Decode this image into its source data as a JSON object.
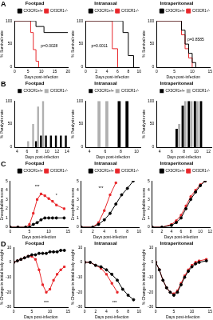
{
  "chart_data": [
    {
      "type": "line",
      "panel_label": "A",
      "title": "Footpad",
      "x_label": "Days post-infection",
      "y_label": "% Survival rate",
      "xlim": [
        0,
        20
      ],
      "xticks": [
        0,
        5,
        10,
        15,
        20
      ],
      "ylim": [
        0,
        100
      ],
      "yticks": [
        0,
        50,
        100
      ],
      "grid": false,
      "legend": "top right",
      "series": [
        {
          "name": "CX3CR1+/+",
          "color": "#000000",
          "line_style": "step",
          "marker": "none",
          "x": [
            0,
            8,
            11,
            20
          ],
          "values": [
            100,
            88,
            75,
            75
          ]
        },
        {
          "name": "CX3CR1-/-",
          "color": "#e8262a",
          "line_style": "step",
          "marker": "none",
          "x": [
            0,
            6,
            7,
            8,
            9
          ],
          "values": [
            100,
            75,
            38,
            13,
            0
          ]
        }
      ],
      "annotations": [
        {
          "x": 13,
          "y": 45,
          "text": "p=0.0028"
        }
      ]
    },
    {
      "type": "line",
      "title": "Intranasal",
      "x_label": "Days post-infection",
      "y_label": "% Survival rate",
      "xlim": [
        0,
        10
      ],
      "xticks": [
        0,
        2,
        4,
        6,
        8,
        10
      ],
      "ylim": [
        0,
        100
      ],
      "yticks": [
        0,
        50,
        100
      ],
      "grid": false,
      "legend": "top right",
      "series": [
        {
          "name": "CX3CR1+/+",
          "color": "#000000",
          "line_style": "step",
          "marker": "none",
          "x": [
            0,
            7,
            8,
            9
          ],
          "values": [
            100,
            75,
            25,
            0
          ]
        },
        {
          "name": "CX3CR1-/-",
          "color": "#e8262a",
          "line_style": "step",
          "marker": "none",
          "x": [
            0,
            5,
            6
          ],
          "values": [
            100,
            40,
            0
          ]
        }
      ],
      "annotations": [
        {
          "x": 2.6,
          "y": 45,
          "text": "p=0.0011"
        }
      ]
    },
    {
      "type": "line",
      "title": "Intraperitoneal",
      "x_label": "Days post-infection",
      "y_label": "% Survival rate",
      "xlim": [
        0,
        15
      ],
      "xticks": [
        0,
        5,
        10,
        15
      ],
      "ylim": [
        0,
        100
      ],
      "yticks": [
        0,
        50,
        100
      ],
      "grid": false,
      "legend": "top right",
      "series": [
        {
          "name": "CX3CR1+/+",
          "color": "#000000",
          "line_style": "step",
          "marker": "none",
          "x": [
            0,
            7,
            8,
            9,
            10,
            11
          ],
          "values": [
            100,
            80,
            50,
            30,
            10,
            0
          ]
        },
        {
          "name": "CX3CR1-/-",
          "color": "#e8262a",
          "line_style": "step",
          "marker": "none",
          "x": [
            0,
            7,
            8,
            9,
            10
          ],
          "values": [
            100,
            70,
            40,
            20,
            0
          ]
        }
      ],
      "annotations": [
        {
          "x": 11,
          "y": 60,
          "text": "p=0.8585"
        }
      ]
    },
    {
      "type": "bar",
      "panel_label": "B",
      "title": "Footpad",
      "x_label": "Days post-infection",
      "y_label": "% Paralysis rate",
      "categories": [
        "4",
        null,
        "6",
        null,
        "8",
        null,
        "10",
        null,
        "12",
        null,
        "14"
      ],
      "ylim": [
        0,
        100
      ],
      "yticks": [
        0,
        50,
        100
      ],
      "grid": false,
      "legend": "top right",
      "series": [
        {
          "name": "CX3CR1+/+",
          "color": "#000000",
          "values": [
            0,
            0,
            0,
            0,
            13,
            25,
            25,
            25,
            25,
            25,
            25
          ]
        },
        {
          "name": "CX3CR1-/-",
          "color": "#b0b0b0",
          "values": [
            0,
            0,
            13,
            50,
            88,
            100,
            0,
            0,
            0,
            0,
            0
          ]
        }
      ]
    },
    {
      "type": "bar",
      "title": "Intranasal",
      "x_label": "Days post-infection",
      "y_label": "% Paralysis rate",
      "categories": [
        "4",
        null,
        "6",
        null,
        "8",
        null,
        "10"
      ],
      "ylim": [
        0,
        100
      ],
      "yticks": [
        0,
        50,
        100
      ],
      "grid": false,
      "legend": "top right",
      "series": [
        {
          "name": "CX3CR1+/+",
          "color": "#000000",
          "values": [
            0,
            0,
            0,
            0,
            100,
            100,
            0
          ]
        },
        {
          "name": "CX3CR1-/-",
          "color": "#b0b0b0",
          "values": [
            0,
            100,
            100,
            0,
            0,
            0,
            0
          ]
        }
      ]
    },
    {
      "type": "bar",
      "title": "Intraperitoneal",
      "x_label": "Days post-infection",
      "y_label": "% Paralysis rate",
      "categories": [
        "4",
        null,
        "6",
        null,
        "8",
        null,
        "10",
        null,
        "12"
      ],
      "ylim": [
        0,
        100
      ],
      "yticks": [
        0,
        50,
        100
      ],
      "grid": false,
      "legend": "top right",
      "series": [
        {
          "name": "CX3CR1+/+",
          "color": "#000000",
          "values": [
            0,
            0,
            0,
            40,
            90,
            100,
            100,
            100,
            0
          ]
        },
        {
          "name": "CX3CR1-/-",
          "color": "#b0b0b0",
          "values": [
            0,
            0,
            0,
            50,
            100,
            100,
            100,
            0,
            0
          ]
        }
      ]
    },
    {
      "type": "line",
      "panel_label": "C",
      "title": "Footpad",
      "x_label": "Days post-infection",
      "y_label": "Encephalitis score",
      "xlim": [
        0,
        15
      ],
      "xticks": [
        0,
        5,
        10,
        15
      ],
      "ylim": [
        0,
        5
      ],
      "yticks": [
        0,
        1,
        2,
        3,
        4,
        5
      ],
      "grid": false,
      "legend": "top right",
      "series": [
        {
          "name": "CX3CR1+/+",
          "color": "#000000",
          "line_style": "solid",
          "marker": "circle",
          "x": [
            0,
            2,
            4,
            5,
            6,
            7,
            8,
            9,
            10,
            11,
            12,
            14
          ],
          "values": [
            0,
            0,
            0,
            0,
            0.3,
            0.5,
            0.8,
            1,
            1,
            1,
            1,
            1
          ]
        },
        {
          "name": "CX3CR1-/-",
          "color": "#e8262a",
          "line_style": "solid",
          "marker": "square",
          "x": [
            0,
            2,
            4,
            5,
            6,
            7,
            8,
            9,
            10,
            11,
            12,
            14
          ],
          "values": [
            0,
            0,
            0,
            0.3,
            1.5,
            3,
            3.6,
            3.4,
            3.1,
            2.8,
            2.4,
            2
          ]
        }
      ],
      "annotations": [
        {
          "x": 7,
          "y": 4.4,
          "text": "***"
        },
        {
          "x": 12,
          "y": 3.4,
          "text": "*"
        }
      ]
    },
    {
      "type": "line",
      "title": "Intranasal",
      "x_label": "Days post-infection",
      "y_label": "Encephalitis score",
      "xlim": [
        0,
        10
      ],
      "xticks": [
        0,
        2,
        4,
        6,
        8,
        10
      ],
      "ylim": [
        0,
        5
      ],
      "yticks": [
        0,
        1,
        2,
        3,
        4,
        5
      ],
      "grid": false,
      "legend": "top right",
      "series": [
        {
          "name": "CX3CR1+/+",
          "color": "#000000",
          "line_style": "solid",
          "marker": "circle",
          "x": [
            0,
            2,
            3,
            4,
            5,
            6,
            7,
            8,
            9
          ],
          "values": [
            0,
            0,
            0.3,
            0.8,
            1.5,
            2.5,
            3.5,
            4.2,
            5
          ]
        },
        {
          "name": "CX3CR1-/-",
          "color": "#e8262a",
          "line_style": "solid",
          "marker": "square",
          "x": [
            0,
            2,
            3,
            4,
            5,
            6,
            7,
            8,
            9
          ],
          "values": [
            0,
            0,
            0.5,
            1.8,
            3.5,
            4.8,
            null,
            null,
            null
          ]
        }
      ],
      "annotations": [
        {
          "x": 3.4,
          "y": 4.2,
          "text": "***"
        }
      ]
    },
    {
      "type": "line",
      "title": "Intraperitoneal",
      "x_label": "Days post-infection",
      "y_label": "Encephalitis score",
      "xlim": [
        0,
        12
      ],
      "xticks": [
        0,
        2,
        4,
        6,
        8,
        10,
        12
      ],
      "ylim": [
        0,
        5
      ],
      "yticks": [
        0,
        1,
        2,
        3,
        4,
        5
      ],
      "grid": false,
      "legend": "top right",
      "series": [
        {
          "name": "CX3CR1+/+",
          "color": "#000000",
          "line_style": "solid",
          "marker": "circle",
          "x": [
            0,
            2,
            4,
            5,
            6,
            7,
            8,
            9,
            10,
            11
          ],
          "values": [
            0,
            0,
            0.2,
            0.5,
            1,
            2,
            3,
            3.8,
            4.5,
            5
          ]
        },
        {
          "name": "CX3CR1-/-",
          "color": "#e8262a",
          "line_style": "solid",
          "marker": "square",
          "x": [
            0,
            2,
            4,
            5,
            6,
            7,
            8,
            9,
            10,
            11
          ],
          "values": [
            0,
            0,
            0.3,
            0.7,
            1.3,
            2.3,
            3.3,
            4,
            4.6,
            5
          ]
        }
      ]
    },
    {
      "type": "line",
      "panel_label": "D",
      "title": "Footpad",
      "x_label": "Days post-infection",
      "y_label": "% Change in initial body weight",
      "xlim": [
        0,
        15
      ],
      "xticks": [
        0,
        5,
        10,
        15
      ],
      "ylim": [
        -30,
        10
      ],
      "yticks": [
        -30,
        -20,
        -10,
        0,
        10
      ],
      "grid": false,
      "series": [
        {
          "name": "CX3CR1+/+",
          "color": "#000000",
          "line_style": "solid",
          "marker": "circle",
          "x": [
            0,
            1,
            2,
            3,
            4,
            5,
            6,
            7,
            8,
            9,
            10,
            11,
            12,
            13,
            14
          ],
          "values": [
            0,
            1,
            2,
            3,
            4,
            5,
            5,
            6,
            6,
            6,
            7,
            7,
            7,
            8,
            8
          ]
        },
        {
          "name": "CX3CR1-/-",
          "color": "#e8262a",
          "line_style": "solid",
          "marker": "square",
          "x": [
            0,
            1,
            2,
            3,
            4,
            5,
            6,
            7,
            8,
            9,
            10,
            11,
            12,
            13,
            14
          ],
          "values": [
            0,
            1,
            2,
            3,
            4,
            4,
            2,
            -5,
            -15,
            -20,
            -18,
            -12,
            -8,
            -5,
            -3
          ]
        }
      ],
      "annotations": [
        {
          "x": 9,
          "y": -27,
          "text": "***"
        }
      ]
    },
    {
      "type": "line",
      "title": "Intranasal",
      "x_label": "Days post-infection",
      "y_label": "% Change in initial body weight",
      "xlim": [
        0,
        10
      ],
      "xticks": [
        0,
        2,
        4,
        6,
        8,
        10
      ],
      "ylim": [
        -30,
        10
      ],
      "yticks": [
        -30,
        -20,
        -10,
        0,
        10
      ],
      "grid": false,
      "series": [
        {
          "name": "CX3CR1+/+",
          "color": "#000000",
          "line_style": "solid",
          "marker": "circle",
          "x": [
            0,
            1,
            2,
            3,
            4,
            5,
            6,
            7,
            8,
            9
          ],
          "values": [
            0,
            0,
            -2,
            -3,
            -5,
            -8,
            -12,
            -18,
            -22,
            -25
          ]
        },
        {
          "name": "CX3CR1-/-",
          "color": "#e8262a",
          "line_style": "solid",
          "marker": "square",
          "x": [
            0,
            1,
            2,
            3,
            4,
            5,
            6,
            7,
            8,
            9
          ],
          "values": [
            0,
            0,
            -2,
            -4,
            -8,
            -14,
            -20,
            null,
            null,
            null
          ]
        }
      ],
      "annotations": [
        {
          "x": 5.5,
          "y": -27,
          "text": "***"
        }
      ]
    },
    {
      "type": "line",
      "title": "Intraperitoneal",
      "x_label": "Days post-infection",
      "y_label": "% Change in initial body weight",
      "xlim": [
        0,
        15
      ],
      "xticks": [
        0,
        5,
        10,
        15
      ],
      "ylim": [
        -30,
        10
      ],
      "yticks": [
        -30,
        -20,
        -10,
        0,
        10
      ],
      "grid": false,
      "series": [
        {
          "name": "CX3CR1+/+",
          "color": "#000000",
          "line_style": "solid",
          "marker": "circle",
          "x": [
            0,
            1,
            2,
            3,
            4,
            5,
            6,
            7,
            8,
            9,
            10,
            11,
            12,
            14
          ],
          "values": [
            0,
            -5,
            -12,
            -17,
            -20,
            -22,
            -20,
            -15,
            -10,
            -6,
            -3,
            -1,
            0,
            1
          ]
        },
        {
          "name": "CX3CR1-/-",
          "color": "#e8262a",
          "line_style": "solid",
          "marker": "square",
          "x": [
            0,
            1,
            2,
            3,
            4,
            5,
            6,
            7,
            8,
            9,
            10,
            11,
            12,
            14
          ],
          "values": [
            0,
            -5,
            -12,
            -17,
            -20,
            -21,
            -19,
            -14,
            -9,
            -5,
            -2,
            0,
            1,
            2
          ]
        }
      ]
    }
  ]
}
